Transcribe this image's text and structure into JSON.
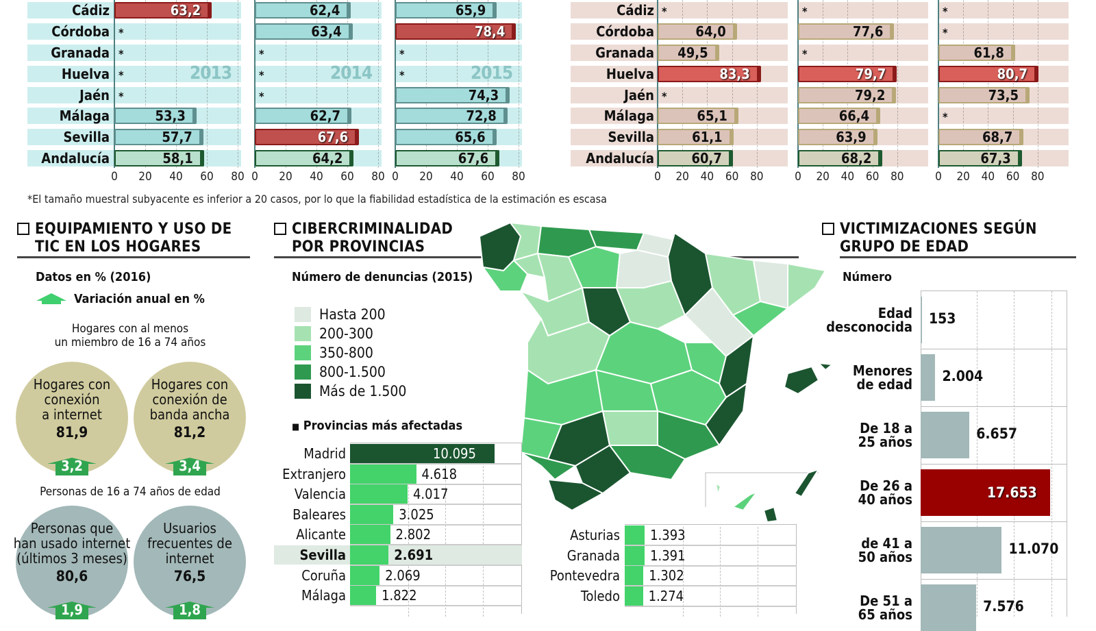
{
  "footnote": "*El tamaño muestral subyacente es inferior a 20 casos, por lo que la fiabilidad estadística de la estimación es escasa",
  "colors": {
    "teal_bar": "#a4dbdb",
    "teal_band": "#cdeeee",
    "red_bar": "#c0504d",
    "pink_bar": "#dcc3b9",
    "pink_band": "#eddcd6",
    "andalucia_teal": "#b9e0cc",
    "andalucia_pink": "#d2d2bc",
    "green_border": "#1e5a30",
    "legend": [
      "#dde9e1",
      "#a6e2b1",
      "#5dd27d",
      "#2f9a4f",
      "#1b5530"
    ],
    "province_bar": "#43d36a",
    "madrid_bar": "#1b5530",
    "victim_bar": "#a3b8b8",
    "victim_highlight": "#990000",
    "circle_households": "#d0cb9e",
    "circle_people": "#a3b8b8",
    "arrow": "#2fa54f"
  },
  "chart_data": [
    {
      "type": "bar",
      "group": "left",
      "star_label": "*",
      "categories": [
        "Cádiz",
        "Córdoba",
        "Granada",
        "Huelva",
        "Jaén",
        "Málaga",
        "Sevilla",
        "Andalucía"
      ],
      "xlim": [
        0,
        80
      ],
      "xticks": [
        "0",
        "20",
        "40",
        "60",
        "80"
      ],
      "panels": [
        {
          "year_label": "2013",
          "values": [
            63.2,
            null,
            null,
            null,
            null,
            53.3,
            57.7,
            58.1
          ],
          "labels": [
            "63,2",
            "*",
            "*",
            "*",
            "*",
            "53,3",
            "57,7",
            "58,1"
          ],
          "highlight": 0
        },
        {
          "year_label": "2014",
          "values": [
            62.4,
            63.4,
            null,
            null,
            null,
            62.7,
            67.6,
            64.2
          ],
          "labels": [
            "62,4",
            "63,4",
            "*",
            "*",
            "*",
            "62,7",
            "67,6",
            "64,2"
          ],
          "highlight": 6
        },
        {
          "year_label": "2015",
          "values": [
            65.9,
            78.4,
            null,
            null,
            74.3,
            72.8,
            65.6,
            67.6
          ],
          "labels": [
            "65,9",
            "78,4",
            "*",
            "*",
            "74,3",
            "72,8",
            "65,6",
            "67,6"
          ],
          "highlight": 1
        }
      ]
    },
    {
      "type": "bar",
      "group": "right",
      "categories": [
        "Cádiz",
        "Córdoba",
        "Granada",
        "Huelva",
        "Jaén",
        "Málaga",
        "Sevilla",
        "Andalucía"
      ],
      "xlim": [
        0,
        80
      ],
      "xticks": [
        "0",
        "20",
        "40",
        "60",
        "80"
      ],
      "panels": [
        {
          "values": [
            null,
            64.0,
            49.5,
            83.3,
            null,
            65.1,
            61.1,
            60.7
          ],
          "labels": [
            "*",
            "64,0",
            "49,5",
            "83,3",
            "*",
            "65,1",
            "61,1",
            "60,7"
          ],
          "highlight": 3
        },
        {
          "values": [
            null,
            77.6,
            null,
            79.7,
            79.2,
            66.4,
            63.9,
            68.2
          ],
          "labels": [
            "*",
            "77,6",
            "*",
            "79,7",
            "79,2",
            "66,4",
            "63,9",
            "68,2"
          ],
          "highlight": 3
        },
        {
          "values": [
            null,
            null,
            61.8,
            80.7,
            73.5,
            null,
            68.7,
            67.3
          ],
          "labels": [
            "*",
            "*",
            "61,8",
            "80,7",
            "73,5",
            "*",
            "68,7",
            "67,3"
          ],
          "highlight": 3
        }
      ]
    },
    {
      "type": "bar",
      "title": "Provincias más afectadas",
      "categories": [
        "Madrid",
        "Extranjero",
        "Valencia",
        "Baleares",
        "Alicante",
        "Sevilla",
        "Coruña",
        "Málaga"
      ],
      "values": [
        10095,
        4618,
        4017,
        3025,
        2802,
        2691,
        2069,
        1822
      ],
      "labels": [
        "10.095",
        "4.618",
        "4.017",
        "3.025",
        "2.802",
        "2.691",
        "2.069",
        "1.822"
      ],
      "highlight_category": "Sevilla"
    },
    {
      "type": "bar",
      "categories": [
        "Asturias",
        "Granada",
        "Pontevedra",
        "Toledo"
      ],
      "values": [
        1393,
        1391,
        1302,
        1274
      ],
      "labels": [
        "1.393",
        "1.391",
        "1.302",
        "1.274"
      ]
    },
    {
      "type": "bar",
      "title": "Número",
      "categories": [
        [
          "Edad",
          "desconocida"
        ],
        [
          "Menores",
          "de edad"
        ],
        [
          "De 18 a",
          "25 años"
        ],
        [
          "De 26 a",
          "40 años"
        ],
        [
          "de 41 a",
          "50 años"
        ],
        [
          "De 51 a",
          "65 años"
        ]
      ],
      "values": [
        153,
        2004,
        6657,
        17653,
        11070,
        7576
      ],
      "labels": [
        "153",
        "2.004",
        "6.657",
        "17.653",
        "11.070",
        "7.576"
      ],
      "highlight": 3
    }
  ],
  "tic": {
    "title_lines": [
      "EQUIPAMIENTO Y USO DE",
      "TIC EN LOS HOGARES"
    ],
    "units": "Datos en % (2016)",
    "arrow_legend": "Variación anual en %",
    "households_title": [
      "Hogares con al menos",
      "un miembro de 16 a 74 años"
    ],
    "households": [
      {
        "lines": [
          "Hogares con",
          "conexión",
          "a internet"
        ],
        "value": "81,9",
        "change": "3,2"
      },
      {
        "lines": [
          "Hogares con",
          "conexión de",
          "banda ancha"
        ],
        "value": "81,2",
        "change": "3,4"
      }
    ],
    "people_title": "Personas de 16 a 74 años de edad",
    "people": [
      {
        "lines": [
          "Personas que",
          "han usado internet",
          "(últimos 3 meses)"
        ],
        "value": "80,6",
        "change": "1,9"
      },
      {
        "lines": [
          "Usuarios",
          "frecuentes de",
          "internet"
        ],
        "value": "76,5",
        "change": "1,8"
      }
    ]
  },
  "cyber": {
    "title_lines": [
      "CIBERCRIMINALIDAD",
      "POR PROVINCIAS"
    ],
    "subtitle": "Número de denuncias (2015)",
    "legend": [
      "Hasta 200",
      "200-300",
      "350-800",
      "800-1.500",
      "Más de 1.500"
    ],
    "top_title": "Provincias más afectadas"
  },
  "victims": {
    "title_lines": [
      "VICTIMIZACIONES SEGÚN",
      "GRUPO DE EDAD"
    ],
    "subtitle": "Número"
  }
}
